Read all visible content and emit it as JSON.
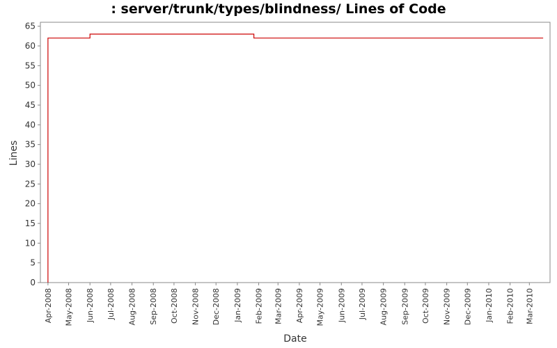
{
  "chart_data": {
    "type": "line",
    "step": true,
    "title": ": server/trunk/types/blindness/ Lines of Code",
    "xlabel": "Date",
    "ylabel": "Lines",
    "ylim": [
      0,
      66
    ],
    "yticks": [
      0,
      5,
      10,
      15,
      20,
      25,
      30,
      35,
      40,
      45,
      50,
      55,
      60,
      65
    ],
    "xlim": [
      "2008-03-21",
      "2010-03-31"
    ],
    "xtick_labels": [
      "Apr-2008",
      "May-2008",
      "Jun-2008",
      "Jul-2008",
      "Aug-2008",
      "Sep-2008",
      "Oct-2008",
      "Nov-2008",
      "Dec-2008",
      "Jan-2009",
      "Feb-2009",
      "Mar-2009",
      "Apr-2009",
      "May-2009",
      "Jun-2009",
      "Jul-2009",
      "Aug-2009",
      "Sep-2009",
      "Oct-2009",
      "Nov-2009",
      "Dec-2009",
      "Jan-2010",
      "Feb-2010",
      "Mar-2010"
    ],
    "xtick_dates": [
      "2008-04-01",
      "2008-05-01",
      "2008-06-01",
      "2008-07-01",
      "2008-08-01",
      "2008-09-01",
      "2008-10-01",
      "2008-11-01",
      "2008-12-01",
      "2009-01-01",
      "2009-02-01",
      "2009-03-01",
      "2009-04-01",
      "2009-05-01",
      "2009-06-01",
      "2009-07-01",
      "2009-08-01",
      "2009-09-01",
      "2009-10-01",
      "2009-11-01",
      "2009-12-01",
      "2010-01-01",
      "2010-02-01",
      "2010-03-01"
    ],
    "series": [
      {
        "color": "#cc0000",
        "points": [
          {
            "x": "2008-04-01",
            "y": 0
          },
          {
            "x": "2008-04-01",
            "y": 62
          },
          {
            "x": "2008-06-01",
            "y": 63
          },
          {
            "x": "2009-01-25",
            "y": 62
          },
          {
            "x": "2010-03-21",
            "y": 62
          }
        ]
      }
    ],
    "grid": false,
    "legend": "none",
    "background": "#ffffff",
    "axis_color": "#888888"
  }
}
